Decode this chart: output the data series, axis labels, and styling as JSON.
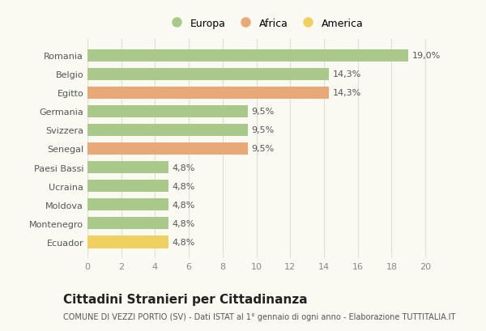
{
  "categories": [
    "Romania",
    "Belgio",
    "Egitto",
    "Germania",
    "Svizzera",
    "Senegal",
    "Paesi Bassi",
    "Ucraina",
    "Moldova",
    "Montenegro",
    "Ecuador"
  ],
  "values": [
    19.0,
    14.3,
    14.3,
    9.5,
    9.5,
    9.5,
    4.8,
    4.8,
    4.8,
    4.8,
    4.8
  ],
  "labels": [
    "19,0%",
    "14,3%",
    "14,3%",
    "9,5%",
    "9,5%",
    "9,5%",
    "4,8%",
    "4,8%",
    "4,8%",
    "4,8%",
    "4,8%"
  ],
  "colors": [
    "#a8c98a",
    "#a8c98a",
    "#e8a878",
    "#a8c98a",
    "#a8c98a",
    "#e8a878",
    "#a8c98a",
    "#a8c98a",
    "#a8c98a",
    "#a8c98a",
    "#f0d060"
  ],
  "legend_labels": [
    "Europa",
    "Africa",
    "America"
  ],
  "legend_colors": [
    "#a8c98a",
    "#e8a878",
    "#f0d060"
  ],
  "xlim": [
    0,
    21
  ],
  "xticks": [
    0,
    2,
    4,
    6,
    8,
    10,
    12,
    14,
    16,
    18,
    20
  ],
  "title": "Cittadini Stranieri per Cittadinanza",
  "subtitle": "COMUNE DI VEZZI PORTIO (SV) - Dati ISTAT al 1° gennaio di ogni anno - Elaborazione TUTTITALIA.IT",
  "bg_color": "#fafaf2",
  "grid_color": "#e0e0d0",
  "bar_height": 0.65,
  "label_fontsize": 8,
  "title_fontsize": 11,
  "subtitle_fontsize": 7,
  "ytick_fontsize": 8,
  "xtick_fontsize": 8
}
